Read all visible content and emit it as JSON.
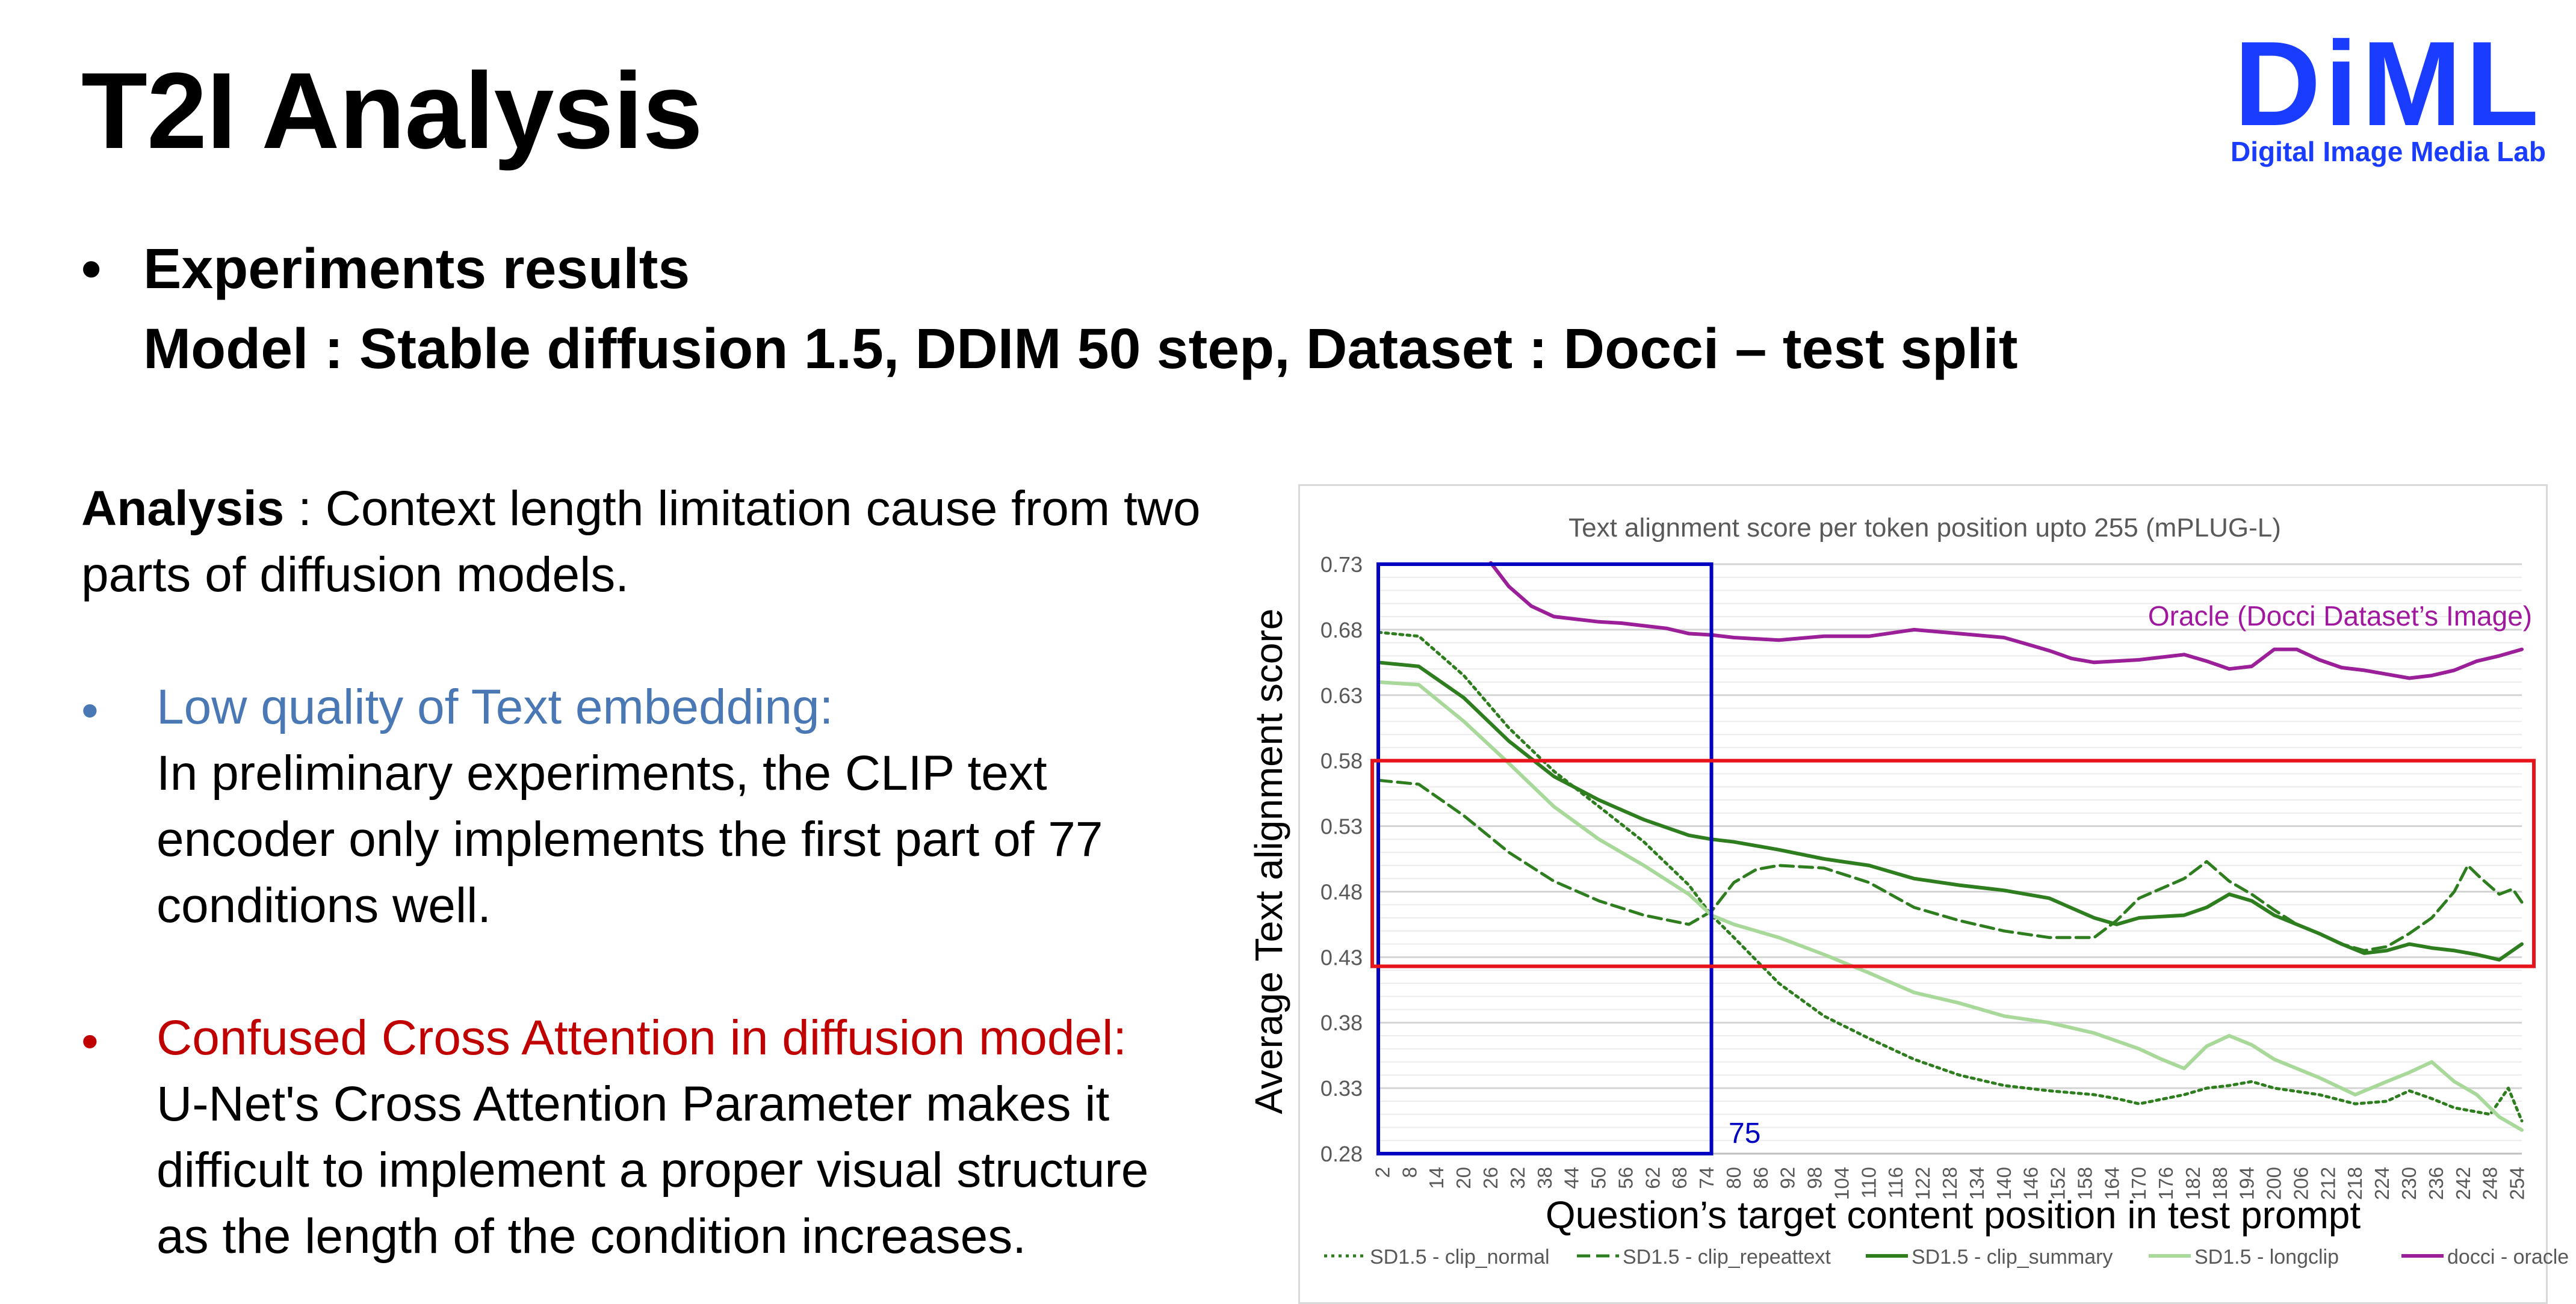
{
  "slide": {
    "title": "T2I Analysis",
    "logo": {
      "text": "DiML",
      "subtitle": "Digital Image Media Lab",
      "color": "#1a3cff"
    },
    "heading": {
      "bullet": "•",
      "line1": "Experiments results",
      "line2": "Model : Stable diffusion 1.5, DDIM 50 step, Dataset : Docci – test split"
    },
    "analysis": {
      "label": "Analysis",
      "text_line1": " : Context length limitation cause from two",
      "text_line2": "parts of diffusion models."
    },
    "points": [
      {
        "bullet": "•",
        "title": "Low quality of Text embedding:",
        "color": "#4a78b5",
        "lines": [
          "In preliminary experiments, the CLIP text",
          "encoder only implements the first part of 77",
          "conditions well."
        ]
      },
      {
        "bullet": "•",
        "title": "Confused Cross Attention in diffusion model:",
        "color": "#c00000",
        "lines": [
          "U-Net's Cross Attention Parameter makes it",
          "difficult to implement a proper visual structure",
          "as the length of the condition increases."
        ]
      }
    ]
  },
  "chart_data": {
    "type": "line",
    "title": "Text alignment score per token position upto 255 (mPLUG-L)",
    "xlabel": "Question’s target content position in test prompt",
    "ylabel": "Average Text alignment score",
    "xlim": [
      1,
      255
    ],
    "ylim": [
      0.28,
      0.73
    ],
    "yticks": [
      "0.28",
      "0.33",
      "0.38",
      "0.43",
      "0.48",
      "0.53",
      "0.58",
      "0.63",
      "0.68",
      "0.73"
    ],
    "xticks": [
      2,
      8,
      14,
      20,
      26,
      32,
      38,
      44,
      50,
      56,
      62,
      68,
      74,
      80,
      86,
      92,
      98,
      104,
      110,
      116,
      122,
      128,
      134,
      140,
      146,
      152,
      158,
      164,
      170,
      176,
      182,
      188,
      194,
      200,
      206,
      212,
      218,
      224,
      230,
      236,
      242,
      248,
      254
    ],
    "grid": true,
    "legend_position": "bottom",
    "annotations": {
      "oracle_label": "Oracle (Docci Dataset’s Image)",
      "oracle_label_color": "#a0189e",
      "box75_label": "75",
      "box75_color": "#0000c0",
      "box75_x": [
        1,
        75
      ],
      "red_box_y": [
        0.423,
        0.58
      ],
      "red_box_color": "#e8141c"
    },
    "series": [
      {
        "name": "SD1.5 - clip_normal",
        "color": "#2e7d1e",
        "dash": "dotted",
        "points": [
          [
            1,
            0.678
          ],
          [
            10,
            0.675
          ],
          [
            20,
            0.645
          ],
          [
            30,
            0.605
          ],
          [
            40,
            0.572
          ],
          [
            50,
            0.545
          ],
          [
            60,
            0.518
          ],
          [
            70,
            0.485
          ],
          [
            75,
            0.462
          ],
          [
            80,
            0.445
          ],
          [
            90,
            0.41
          ],
          [
            100,
            0.385
          ],
          [
            110,
            0.368
          ],
          [
            120,
            0.352
          ],
          [
            130,
            0.34
          ],
          [
            140,
            0.332
          ],
          [
            150,
            0.328
          ],
          [
            160,
            0.325
          ],
          [
            165,
            0.322
          ],
          [
            170,
            0.318
          ],
          [
            180,
            0.325
          ],
          [
            185,
            0.33
          ],
          [
            190,
            0.332
          ],
          [
            195,
            0.335
          ],
          [
            200,
            0.33
          ],
          [
            210,
            0.325
          ],
          [
            218,
            0.318
          ],
          [
            225,
            0.32
          ],
          [
            230,
            0.328
          ],
          [
            235,
            0.322
          ],
          [
            240,
            0.315
          ],
          [
            248,
            0.31
          ],
          [
            252,
            0.33
          ],
          [
            255,
            0.305
          ]
        ]
      },
      {
        "name": "SD1.5 - clip_repeattext",
        "color": "#2e7d1e",
        "dash": "dashed",
        "points": [
          [
            1,
            0.565
          ],
          [
            10,
            0.562
          ],
          [
            20,
            0.538
          ],
          [
            30,
            0.51
          ],
          [
            40,
            0.488
          ],
          [
            50,
            0.473
          ],
          [
            60,
            0.462
          ],
          [
            70,
            0.455
          ],
          [
            75,
            0.465
          ],
          [
            80,
            0.487
          ],
          [
            85,
            0.497
          ],
          [
            90,
            0.5
          ],
          [
            100,
            0.498
          ],
          [
            110,
            0.487
          ],
          [
            120,
            0.468
          ],
          [
            130,
            0.458
          ],
          [
            140,
            0.45
          ],
          [
            150,
            0.445
          ],
          [
            160,
            0.445
          ],
          [
            165,
            0.458
          ],
          [
            170,
            0.475
          ],
          [
            180,
            0.49
          ],
          [
            185,
            0.503
          ],
          [
            190,
            0.488
          ],
          [
            195,
            0.478
          ],
          [
            200,
            0.466
          ],
          [
            205,
            0.455
          ],
          [
            210,
            0.448
          ],
          [
            215,
            0.44
          ],
          [
            220,
            0.435
          ],
          [
            225,
            0.438
          ],
          [
            230,
            0.448
          ],
          [
            235,
            0.46
          ],
          [
            240,
            0.48
          ],
          [
            243,
            0.5
          ],
          [
            246,
            0.49
          ],
          [
            250,
            0.478
          ],
          [
            253,
            0.482
          ],
          [
            255,
            0.472
          ]
        ]
      },
      {
        "name": "SD1.5 - clip_summary",
        "color": "#2e7d1e",
        "dash": "solid",
        "points": [
          [
            1,
            0.655
          ],
          [
            10,
            0.652
          ],
          [
            20,
            0.628
          ],
          [
            30,
            0.595
          ],
          [
            40,
            0.568
          ],
          [
            50,
            0.55
          ],
          [
            60,
            0.535
          ],
          [
            70,
            0.523
          ],
          [
            75,
            0.52
          ],
          [
            80,
            0.518
          ],
          [
            90,
            0.512
          ],
          [
            100,
            0.505
          ],
          [
            110,
            0.5
          ],
          [
            120,
            0.49
          ],
          [
            130,
            0.485
          ],
          [
            140,
            0.481
          ],
          [
            150,
            0.475
          ],
          [
            160,
            0.46
          ],
          [
            165,
            0.455
          ],
          [
            170,
            0.46
          ],
          [
            180,
            0.462
          ],
          [
            185,
            0.468
          ],
          [
            190,
            0.478
          ],
          [
            195,
            0.473
          ],
          [
            200,
            0.462
          ],
          [
            210,
            0.448
          ],
          [
            215,
            0.44
          ],
          [
            220,
            0.433
          ],
          [
            225,
            0.435
          ],
          [
            230,
            0.44
          ],
          [
            235,
            0.437
          ],
          [
            240,
            0.435
          ],
          [
            245,
            0.432
          ],
          [
            250,
            0.428
          ],
          [
            255,
            0.44
          ]
        ]
      },
      {
        "name": "SD1.5 - longclip",
        "color": "#a8d89a",
        "dash": "solid",
        "points": [
          [
            1,
            0.64
          ],
          [
            10,
            0.638
          ],
          [
            20,
            0.61
          ],
          [
            30,
            0.578
          ],
          [
            40,
            0.545
          ],
          [
            50,
            0.52
          ],
          [
            60,
            0.5
          ],
          [
            70,
            0.478
          ],
          [
            75,
            0.462
          ],
          [
            80,
            0.455
          ],
          [
            90,
            0.445
          ],
          [
            100,
            0.432
          ],
          [
            110,
            0.418
          ],
          [
            120,
            0.403
          ],
          [
            130,
            0.395
          ],
          [
            140,
            0.385
          ],
          [
            150,
            0.38
          ],
          [
            160,
            0.372
          ],
          [
            170,
            0.36
          ],
          [
            175,
            0.352
          ],
          [
            180,
            0.345
          ],
          [
            185,
            0.362
          ],
          [
            190,
            0.37
          ],
          [
            195,
            0.363
          ],
          [
            200,
            0.352
          ],
          [
            210,
            0.338
          ],
          [
            218,
            0.325
          ],
          [
            225,
            0.335
          ],
          [
            230,
            0.342
          ],
          [
            235,
            0.35
          ],
          [
            240,
            0.335
          ],
          [
            245,
            0.325
          ],
          [
            250,
            0.308
          ],
          [
            255,
            0.298
          ]
        ]
      },
      {
        "name": "docci - oracle",
        "color": "#9a1f98",
        "dash": "solid",
        "points": [
          [
            26,
            0.731
          ],
          [
            30,
            0.713
          ],
          [
            35,
            0.698
          ],
          [
            40,
            0.69
          ],
          [
            45,
            0.688
          ],
          [
            50,
            0.686
          ],
          [
            55,
            0.685
          ],
          [
            60,
            0.683
          ],
          [
            65,
            0.681
          ],
          [
            70,
            0.677
          ],
          [
            75,
            0.676
          ],
          [
            80,
            0.674
          ],
          [
            90,
            0.672
          ],
          [
            100,
            0.675
          ],
          [
            110,
            0.675
          ],
          [
            120,
            0.68
          ],
          [
            130,
            0.677
          ],
          [
            140,
            0.674
          ],
          [
            145,
            0.669
          ],
          [
            150,
            0.664
          ],
          [
            155,
            0.658
          ],
          [
            160,
            0.655
          ],
          [
            170,
            0.657
          ],
          [
            175,
            0.659
          ],
          [
            180,
            0.661
          ],
          [
            185,
            0.656
          ],
          [
            190,
            0.65
          ],
          [
            195,
            0.652
          ],
          [
            200,
            0.665
          ],
          [
            205,
            0.665
          ],
          [
            210,
            0.657
          ],
          [
            215,
            0.651
          ],
          [
            220,
            0.649
          ],
          [
            225,
            0.646
          ],
          [
            230,
            0.643
          ],
          [
            235,
            0.645
          ],
          [
            240,
            0.649
          ],
          [
            245,
            0.656
          ],
          [
            250,
            0.66
          ],
          [
            255,
            0.665
          ]
        ]
      }
    ]
  }
}
